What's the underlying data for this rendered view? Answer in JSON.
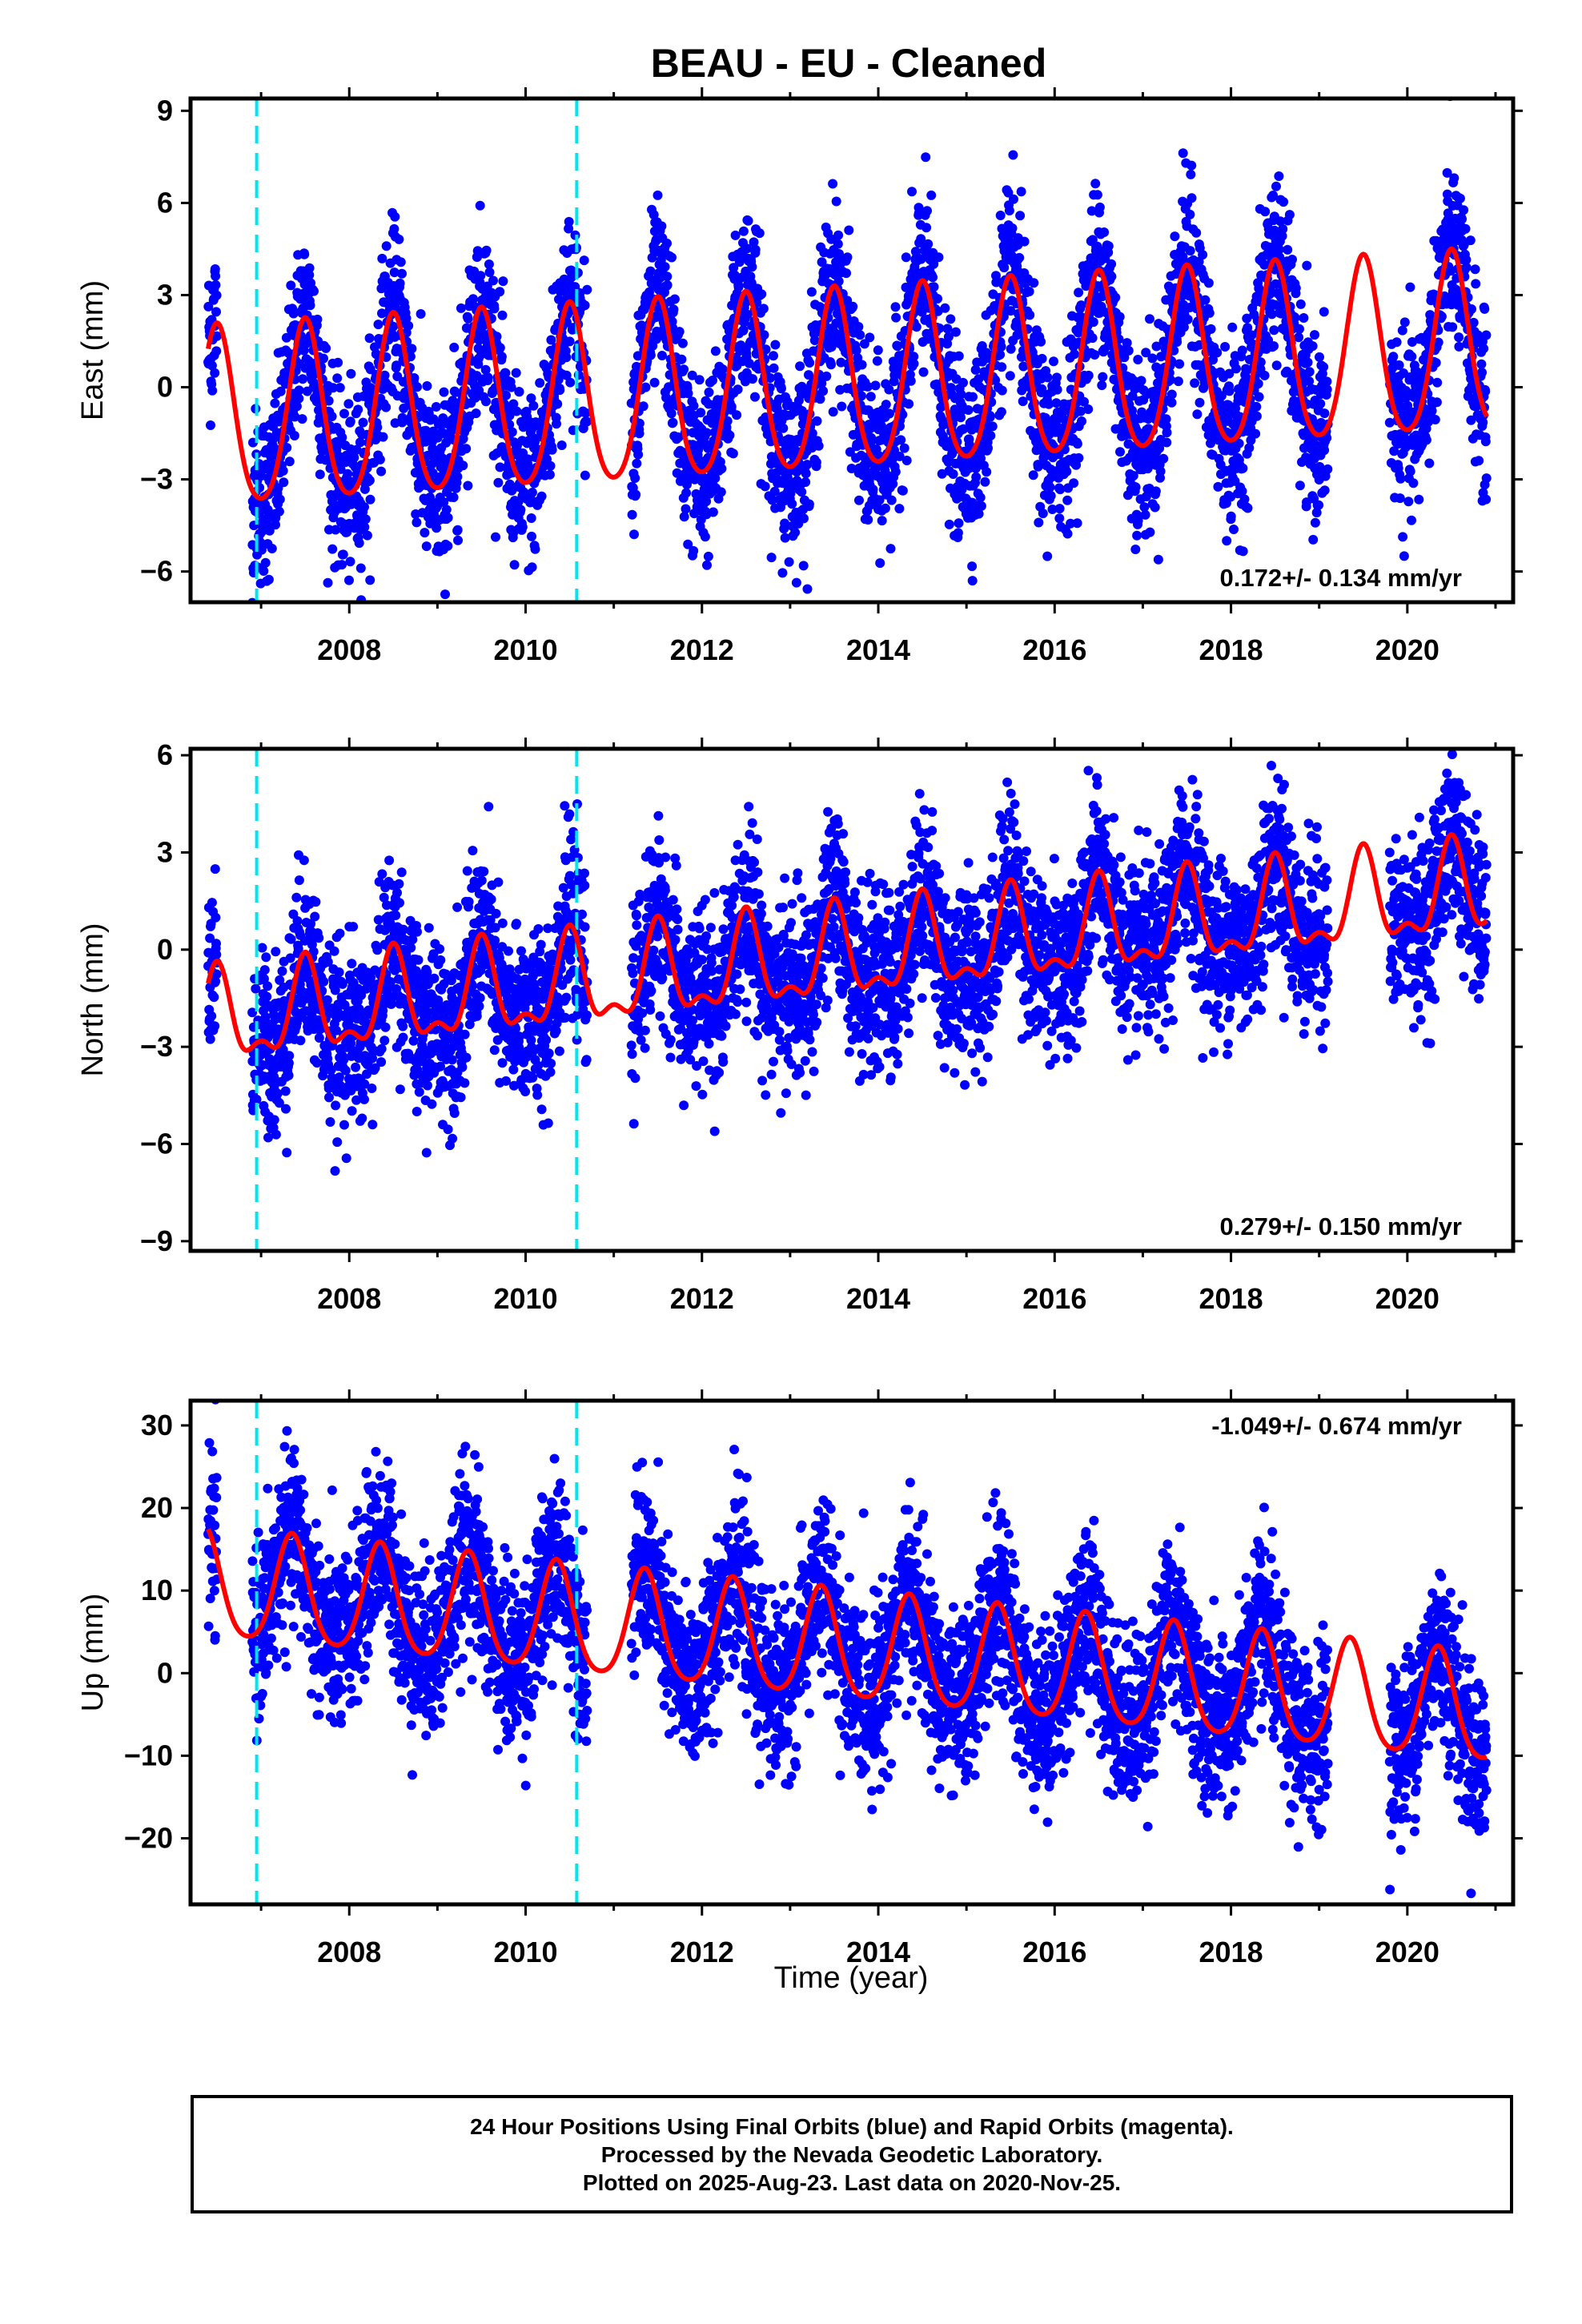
{
  "title": "BEAU  - EU - Cleaned",
  "xlabel": "Time (year)",
  "colors": {
    "data": "#0000ff",
    "model": "#ff0000",
    "breaks": "#00e5ee",
    "axes": "#000000"
  },
  "footer": {
    "line1": "24 Hour Positions Using Final Orbits (blue) and Rapid Orbits (magenta).",
    "line2": "Processed by the Nevada Geodetic Laboratory.",
    "line3": "Plotted on 2025-Aug-23. Last data on 2020-Nov-25."
  },
  "chart_data": [
    {
      "type": "scatter",
      "ylabel": "East (mm)",
      "x_ticks": [
        2008,
        2010,
        2012,
        2014,
        2016,
        2018,
        2020
      ],
      "y_ticks": [
        9,
        6,
        3,
        0,
        -3,
        -6
      ],
      "y_tick_labels": [
        "9",
        "6",
        "3",
        "0",
        "−3",
        "−6"
      ],
      "xlim": [
        2006.2,
        2021.2
      ],
      "ylim": [
        -7.0,
        9.4
      ],
      "rate_label": "0.172+/- 0.134 mm/yr",
      "rate_position": "bottom-right",
      "break_lines": [
        2006.95,
        2010.58
      ],
      "model": {
        "offset": 0.0,
        "rate": 0.172,
        "annual": -2.9,
        "annual_phase": 2006.0,
        "semiannual": 0.4,
        "start": 2006.4,
        "end": 2020.9
      },
      "data_ranges": [
        [
          2006.4,
          2006.5
        ],
        [
          2006.9,
          2010.7
        ],
        [
          2011.2,
          2019.1
        ],
        [
          2019.8,
          2020.9
        ]
      ]
    },
    {
      "type": "scatter",
      "ylabel": "North (mm)",
      "x_ticks": [
        2008,
        2010,
        2012,
        2014,
        2016,
        2018,
        2020
      ],
      "y_ticks": [
        6,
        3,
        0,
        -3,
        -6,
        -9
      ],
      "y_tick_labels": [
        "6",
        "3",
        "0",
        "−3",
        "−6",
        "−9"
      ],
      "xlim": [
        2006.2,
        2021.2
      ],
      "ylim": [
        -9.3,
        6.2
      ],
      "rate_label": "0.279+/- 0.150 mm/yr",
      "rate_position": "bottom-right",
      "break_lines": [
        2006.95,
        2010.58
      ],
      "model": {
        "offset": -0.3,
        "rate": 0.279,
        "annual": 1.3,
        "annual_phase": 2006.5,
        "semiannual": 0.6,
        "start": 2006.4,
        "end": 2020.9
      },
      "data_ranges": [
        [
          2006.4,
          2006.5
        ],
        [
          2006.9,
          2010.7
        ],
        [
          2011.2,
          2019.1
        ],
        [
          2019.8,
          2020.9
        ]
      ]
    },
    {
      "type": "scatter",
      "ylabel": "Up (mm)",
      "x_ticks": [
        2008,
        2010,
        2012,
        2014,
        2016,
        2018,
        2020
      ],
      "y_ticks": [
        30,
        20,
        10,
        0,
        -10,
        -20
      ],
      "y_tick_labels": [
        "30",
        "20",
        "10",
        "0",
        "−10",
        "−20"
      ],
      "xlim": [
        2006.2,
        2021.2
      ],
      "ylim": [
        -28,
        33
      ],
      "rate_label": "-1.049+/- 0.674 mm/yr",
      "rate_position": "top-right",
      "break_lines": [
        2006.95,
        2010.58
      ],
      "model": {
        "offset": 3.0,
        "rate": -1.049,
        "annual": 6.5,
        "annual_phase": 2006.35,
        "semiannual": 1.0,
        "start": 2006.4,
        "end": 2020.9
      },
      "data_ranges": [
        [
          2006.4,
          2006.5
        ],
        [
          2006.9,
          2010.7
        ],
        [
          2011.2,
          2019.1
        ],
        [
          2019.8,
          2020.9
        ]
      ]
    }
  ]
}
